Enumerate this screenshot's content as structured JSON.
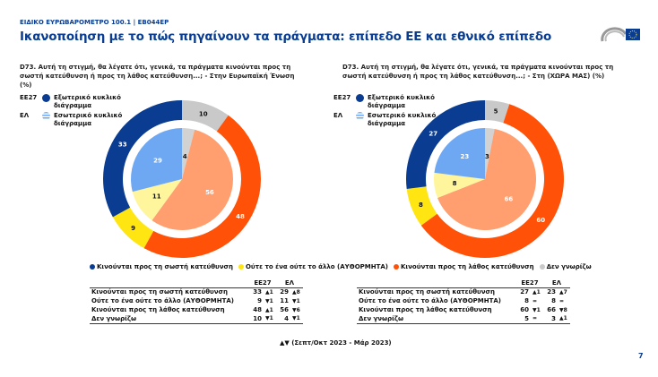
{
  "header": {
    "survey": "ΕΙΔΙΚΟ ΕΥΡΩΒΑΡΟΜΕΤΡΟ 100.1 | EB044EP",
    "title": "Ικανοποίηση με το πώς πηγαίνουν τα πράγματα: επίπεδο ΕΕ και εθνικό επίπεδο",
    "logo_text": "Ευρωπαϊκό Κοινοβούλιο"
  },
  "ring_key": {
    "outer_label": "ΕΕ27",
    "outer_text": "Εξωτερικό κυκλικό διάγραμμα",
    "inner_label": "ΕΛ",
    "inner_text": "Εσωτερικό κυκλικό διάγραμμα"
  },
  "colors": {
    "outer": [
      "#0a3d91",
      "#ffe512",
      "#ff5208",
      "#c9c9c9"
    ],
    "inner": [
      "#6ea8f2",
      "#fff59d",
      "#ff9f70",
      "#d2d2d2"
    ],
    "accent": "#0a3d91"
  },
  "chart_data": [
    {
      "type": "pie",
      "subtype": "nested-donut",
      "title": "D73. Αυτή τη στιγμή, θα λέγατε ότι, γενικά, τα πράγματα κινούνται προς τη σωστή κατεύθυνση ή προς τη λάθος κατεύθυνση...; - Στην Ευρωπαϊκή Ένωση (%)",
      "categories": [
        "Κινούνται προς τη σωστή κατεύθυνση",
        "Ούτε το ένα ούτε το άλλο (ΑΥΘΟΡΜΗΤΑ)",
        "Κινούνται προς τη λάθος κατεύθυνση",
        "Δεν γνωρίζω"
      ],
      "series": [
        {
          "name": "ΕΕ27",
          "values": [
            33,
            9,
            48,
            10
          ],
          "change": [
            "▲1",
            "▼1",
            "▲1",
            "▼1"
          ]
        },
        {
          "name": "ΕΛ",
          "values": [
            29,
            11,
            56,
            4
          ],
          "change": [
            "▲8",
            "▼1",
            "▼6",
            "▼1"
          ]
        }
      ]
    },
    {
      "type": "pie",
      "subtype": "nested-donut",
      "title": "D73. Αυτή τη στιγμή, θα λέγατε ότι, γενικά, τα πράγματα κινούνται προς τη σωστή κατεύθυνση ή προς τη λάθος κατεύθυνση...; - Στη (ΧΩΡΑ ΜΑΣ) (%)",
      "categories": [
        "Κινούνται προς τη σωστή κατεύθυνση",
        "Ούτε το ένα ούτε το άλλο (ΑΥΘΟΡΜΗΤΑ)",
        "Κινούνται προς τη λάθος κατεύθυνση",
        "Δεν γνωρίζω"
      ],
      "series": [
        {
          "name": "ΕΕ27",
          "values": [
            27,
            8,
            60,
            5
          ],
          "change": [
            "▲1",
            "=",
            "▼1",
            "="
          ]
        },
        {
          "name": "ΕΛ",
          "values": [
            23,
            8,
            66,
            3
          ],
          "change": [
            "▲7",
            "=",
            "▼8",
            "▲1"
          ]
        }
      ]
    }
  ],
  "legend": [
    "Κινούνται προς τη σωστή κατεύθυνση",
    "Ούτε το ένα ούτε το άλλο (ΑΥΘΟΡΜΗΤΑ)",
    "Κινούνται προς τη λάθος κατεύθυνση",
    "Δεν γνωρίζω"
  ],
  "table_headers": [
    "ΕΕ27",
    "ΕΛ"
  ],
  "note": "▲▼ (Σεπτ/Οκτ 2023 - Μάρ 2023)",
  "page_number": "7"
}
